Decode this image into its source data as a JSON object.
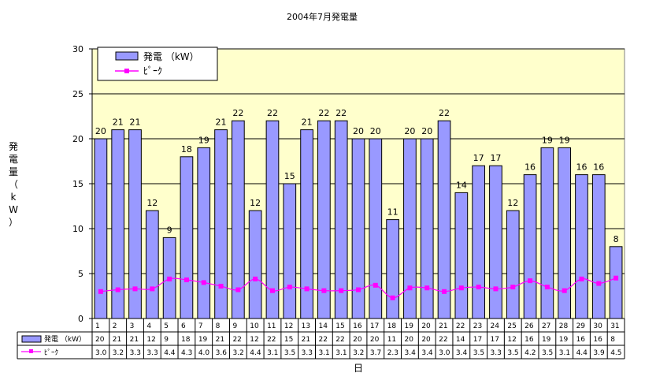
{
  "chart_data": {
    "type": "bar",
    "title": "2004年7月発電量",
    "xlabel": "日",
    "ylabel": "発電量（kW）",
    "ylim": [
      0,
      30
    ],
    "yticks": [
      0,
      5,
      10,
      15,
      20,
      25,
      30
    ],
    "grid": true,
    "legend_position": "top-left",
    "categories": [
      "1",
      "2",
      "3",
      "4",
      "5",
      "6",
      "7",
      "8",
      "9",
      "10",
      "11",
      "12",
      "13",
      "14",
      "15",
      "16",
      "17",
      "18",
      "19",
      "20",
      "21",
      "22",
      "23",
      "24",
      "25",
      "26",
      "27",
      "28",
      "29",
      "30",
      "31"
    ],
    "series": [
      {
        "name": "発電 （kW）",
        "type": "bar",
        "color": "#9999ff",
        "values": [
          20,
          21,
          21,
          12,
          9,
          18,
          19,
          21,
          22,
          12,
          22,
          15,
          21,
          22,
          22,
          20,
          20,
          11,
          20,
          20,
          22,
          14,
          17,
          17,
          12,
          16,
          19,
          19,
          16,
          16,
          8
        ],
        "value_labels": [
          "20",
          "21",
          "21",
          "12",
          "9",
          "18",
          "19",
          "21",
          "22",
          "12",
          "22",
          "15",
          "21",
          "22",
          "22",
          "20",
          "20",
          "11",
          "20",
          "20",
          "22",
          "14",
          "17",
          "17",
          "12",
          "16",
          "19",
          "19",
          "16",
          "16",
          "8"
        ]
      },
      {
        "name": "ﾋﾟｰｸ",
        "type": "line",
        "color": "#ff00ff",
        "values": [
          3.0,
          3.2,
          3.3,
          3.3,
          4.4,
          4.3,
          4.0,
          3.6,
          3.2,
          4.4,
          3.1,
          3.5,
          3.3,
          3.1,
          3.1,
          3.2,
          3.7,
          2.3,
          3.4,
          3.4,
          3.0,
          3.4,
          3.5,
          3.3,
          3.5,
          4.2,
          3.5,
          3.1,
          4.4,
          3.9,
          4.5
        ],
        "value_labels": [
          "3.0",
          "3.2",
          "3.3",
          "3.3",
          "4.4",
          "4.3",
          "4.0",
          "3.6",
          "3.2",
          "4.4",
          "3.1",
          "3.5",
          "3.3",
          "3.1",
          "3.1",
          "3.2",
          "3.7",
          "2.3",
          "3.4",
          "3.4",
          "3.0",
          "3.4",
          "3.5",
          "3.3",
          "3.5",
          "4.2",
          "3.5",
          "3.1",
          "4.4",
          "3.9",
          "4.5"
        ]
      }
    ],
    "colors": {
      "plot_bg": "#ffffcc",
      "bar": "#9999ff",
      "line": "#ff00ff"
    }
  }
}
